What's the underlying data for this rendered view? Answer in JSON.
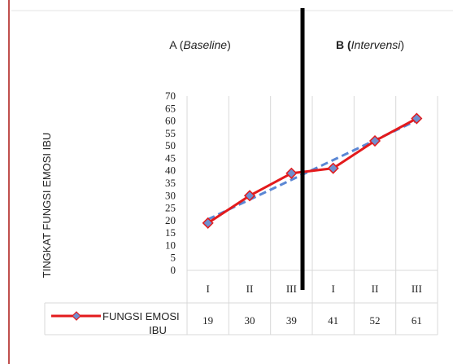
{
  "chart_data": {
    "type": "line",
    "categories": [
      "I",
      "II",
      "III",
      "I",
      "II",
      "III"
    ],
    "series": [
      {
        "name": "FUNGSI EMOSI IBU",
        "values": [
          19,
          30,
          39,
          41,
          52,
          61
        ],
        "color": "#e31a1c",
        "marker_color": "#6f8fcf"
      }
    ],
    "trendline": {
      "style": "dashed",
      "color": "#5b87d4"
    },
    "ylim": [
      0,
      70
    ],
    "yticks": [
      "0",
      "5",
      "10",
      "15",
      "20",
      "25",
      "30",
      "35",
      "40",
      "45",
      "50",
      "55",
      "60",
      "65",
      "70"
    ],
    "ylabel": "TINGKAT FUNGSI EMOSI IBU",
    "xlabel": "",
    "phases": [
      {
        "prefix": "A (",
        "name": "Baseline",
        "suffix": ")"
      },
      {
        "prefix": "B (",
        "name": "Intervensi",
        "suffix": ")"
      }
    ],
    "phase_divider_after_index": 2,
    "data_table": true,
    "legend_position": "data-table-left",
    "grid": true,
    "colors": {
      "line": "#e31a1c",
      "marker": "#6f8fcf",
      "trend": "#5b87d4",
      "divider": "#000000",
      "grid": "#d9d9d9",
      "border": "#c0504d"
    }
  }
}
